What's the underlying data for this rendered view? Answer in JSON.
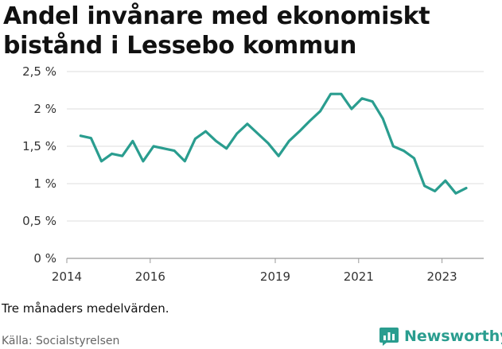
{
  "title": "Andel invånare med ekonomiskt bistånd i Lessebo kommun",
  "footnote": "Tre månaders medelvärden.",
  "source": "Källa: Socialstyrelsen",
  "brand": {
    "name": "Newsworthy",
    "color": "#2a9d8f"
  },
  "chart_data": {
    "type": "line",
    "xlabel": "",
    "ylabel": "",
    "x_ticks": [
      "2014",
      "2016",
      "2019",
      "2021",
      "2023"
    ],
    "y_ticks": [
      "0 %",
      "0,5 %",
      "1 %",
      "1,5 %",
      "2 %",
      "2,5 %"
    ],
    "ylim": [
      0,
      2.5
    ],
    "xlim": [
      2014,
      2024
    ],
    "grid": true,
    "line_color": "#2a9d8f",
    "series": [
      {
        "x": [
          2014.33,
          2014.58,
          2014.83,
          2015.08,
          2015.33,
          2015.58,
          2015.83,
          2016.08,
          2016.33,
          2016.58,
          2016.83,
          2017.08,
          2017.33,
          2017.58,
          2017.83,
          2018.08,
          2018.33,
          2018.58,
          2018.83,
          2019.08,
          2019.33,
          2019.58,
          2019.83,
          2020.08,
          2020.33,
          2020.58,
          2020.83,
          2021.08,
          2021.33,
          2021.58,
          2021.83,
          2022.08,
          2022.33,
          2022.58,
          2022.83,
          2023.08,
          2023.33,
          2023.58
        ],
        "values": [
          1.64,
          1.61,
          1.3,
          1.4,
          1.37,
          1.57,
          1.3,
          1.5,
          1.47,
          1.44,
          1.3,
          1.6,
          1.7,
          1.57,
          1.47,
          1.67,
          1.8,
          1.67,
          1.54,
          1.37,
          1.57,
          1.7,
          1.84,
          1.97,
          2.2,
          2.2,
          2.0,
          2.14,
          2.1,
          1.87,
          1.5,
          1.44,
          1.34,
          0.97,
          0.9,
          1.04,
          0.87,
          0.94
        ]
      }
    ]
  }
}
